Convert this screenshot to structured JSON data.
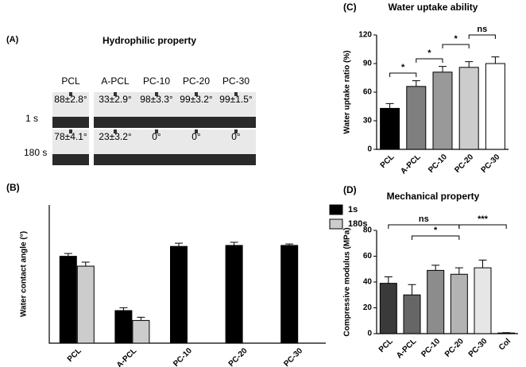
{
  "panel_a": {
    "label": "(A)",
    "title": "Hydrophilic property",
    "columns": [
      "PCL",
      "A-PCL",
      "PC-10",
      "PC-20",
      "PC-30"
    ],
    "rows": [
      {
        "label": "1 s",
        "values": [
          "88±2.8°",
          "33±2.9°",
          "98±3.3°",
          "99±3.2°",
          "99±1.5°"
        ]
      },
      {
        "label": "180 s",
        "values": [
          "78±4.1°",
          "23±3.2°",
          "0°",
          "0°",
          "0°"
        ]
      }
    ]
  },
  "chart_data": [
    {
      "type": "bar",
      "panel": "(B)",
      "ylabel": "Water contact angle (°)",
      "categories": [
        "PCL",
        "A-PCL",
        "PC-10",
        "PC-20",
        "PC-30"
      ],
      "series": [
        {
          "name": "1s",
          "color": "#000000",
          "values": [
            88,
            33,
            98,
            99,
            99
          ],
          "errors": [
            2.8,
            2.9,
            3.3,
            3.2,
            1.5
          ]
        },
        {
          "name": "180s",
          "color": "#cccccc",
          "values": [
            78,
            23,
            0,
            0,
            0
          ],
          "errors": [
            4.1,
            3.2,
            0,
            0,
            0
          ]
        }
      ],
      "ylim": [
        0,
        140
      ]
    },
    {
      "type": "bar",
      "panel": "(C)",
      "title": "Water uptake ability",
      "ylabel": "Water uptake ratio (%)",
      "categories": [
        "PCL",
        "A-PCL",
        "PC-10",
        "PC-20",
        "PC-30"
      ],
      "values": [
        43,
        66,
        81,
        86,
        90
      ],
      "errors": [
        5,
        6,
        6,
        6,
        7
      ],
      "colors": [
        "#000000",
        "#7f7f7f",
        "#999999",
        "#cccccc",
        "#ffffff"
      ],
      "ylim": [
        0,
        120
      ],
      "yticks": [
        0,
        30,
        60,
        90,
        120
      ],
      "annotations": [
        "*",
        "*",
        "*",
        "ns"
      ]
    },
    {
      "type": "bar",
      "panel": "(D)",
      "title": "Mechanical property",
      "ylabel": "Compressive modulus (MPa)",
      "categories": [
        "PCL",
        "A-PCL",
        "PC-10",
        "PC-20",
        "PC-30",
        "Col"
      ],
      "values": [
        39,
        30,
        49,
        46,
        51,
        0.5
      ],
      "errors": [
        5,
        8,
        4,
        5,
        6,
        0.3
      ],
      "colors": [
        "#3a3a3a",
        "#666666",
        "#8c8c8c",
        "#b3b3b3",
        "#e6e6e6",
        "#888888"
      ],
      "ylim": [
        0,
        80
      ],
      "yticks": [
        0,
        20,
        40,
        60,
        80
      ],
      "annotations": [
        "ns",
        "*",
        "***"
      ]
    }
  ]
}
